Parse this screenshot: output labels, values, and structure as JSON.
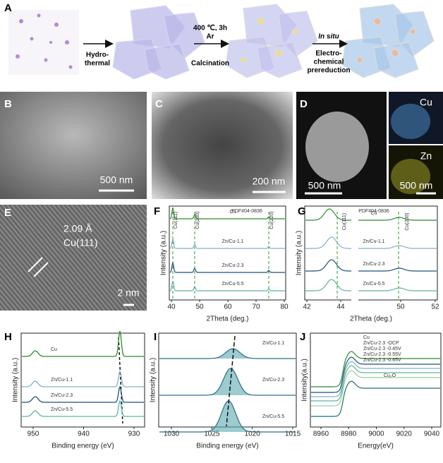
{
  "panel_a": {
    "label": "A",
    "step1": [
      "Hydro-",
      "thermal"
    ],
    "step2": [
      "400 ℃, 3h",
      "Ar",
      "Calcination"
    ],
    "step3_italic": "In situ",
    "step3": [
      "Electro-",
      "chemical",
      "prereduction"
    ]
  },
  "panel_b": {
    "label": "B",
    "scale": "500 nm"
  },
  "panel_c": {
    "label": "C",
    "scale": "200 nm"
  },
  "panel_d": {
    "label": "D",
    "scale": "500 nm",
    "map_cu": "Cu",
    "map_zn": "Zn",
    "map_scale": "500 nm"
  },
  "panel_e": {
    "label": "E",
    "spacing": "2.09 Å",
    "plane": "Cu(111)",
    "scale": "2 nm"
  },
  "panel_f": {
    "label": "F",
    "x_label": "2Theta (deg.)",
    "y_label": "Intensity (a.u.)",
    "x_ticks": [
      40,
      50,
      60,
      70,
      80
    ],
    "reference": "PDF#04-0836",
    "peaks": [
      "Cu(111)",
      "Cu(200)",
      "Cu(220)"
    ],
    "samples": [
      "Cu",
      "Zn/Cu-1.1",
      "Zn/Cu-2.3",
      "Zn/Cu-5.5"
    ]
  },
  "panel_g": {
    "label": "G",
    "x_label": "2Theta (deg.)",
    "y_label": "Intensity (a.u.)",
    "x_ticks": [
      42,
      44,
      50,
      52
    ],
    "reference": "PDF#04-0836",
    "peaks": [
      "Cu(111)",
      "Cu(200)"
    ],
    "samples": [
      "Cu",
      "Zn/Cu-1.1",
      "Zn/Cu-2.3",
      "Zn/Cu-5.5"
    ]
  },
  "panel_h": {
    "label": "H",
    "x_label": "Binding energy (eV)",
    "y_label": "Intensity (a.u.)",
    "x_ticks": [
      950,
      940,
      930
    ],
    "samples": [
      "Cu",
      "Zn/Cu-1.1",
      "Zn/Cu-2.3",
      "Zn/Cu-5.5"
    ]
  },
  "panel_i": {
    "label": "I",
    "x_label": "Binding energy (eV)",
    "y_label": "Intensity (a.u.)",
    "x_ticks": [
      1030,
      1025,
      1020,
      1015
    ],
    "samples": [
      "Zn/Cu-1.1",
      "Zn/Cu-2.3",
      "Zn/Cu-5.5"
    ]
  },
  "panel_j": {
    "label": "J",
    "x_label": "Energy(eV)",
    "y_label": "Intensity(a.u.)",
    "x_ticks": [
      8960,
      8980,
      9000,
      9020,
      9040
    ],
    "legend": [
      "Cu",
      "Zn/Cu-2.3 -OCP",
      "Zn/Cu-2.3 -0.45V",
      "Zn/Cu-2.3 -0.55V",
      "Zn/Cu-2.3 -0.65V"
    ],
    "reference": "Cu₂O"
  }
}
